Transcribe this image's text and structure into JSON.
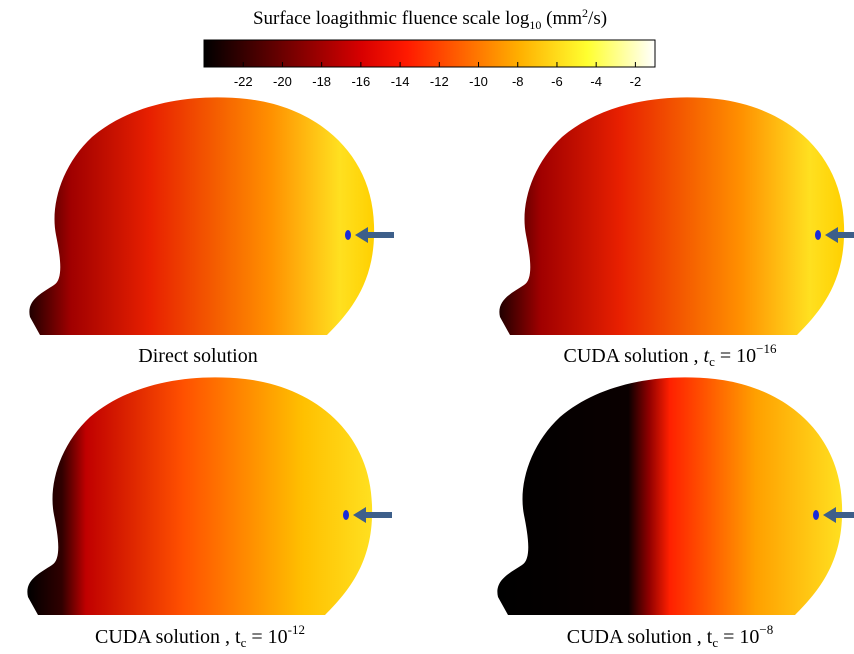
{
  "title": {
    "text": "Surface loagithmic fluence scale",
    "log": "log",
    "base": "10",
    "unit_open": "(mm",
    "unit_power": "2",
    "unit_close": "/s)"
  },
  "colorbar": {
    "lim": [
      -24,
      -1
    ],
    "ticks": [
      -22,
      -20,
      -18,
      -16,
      -14,
      -12,
      -10,
      -8,
      -6,
      -4,
      -2
    ]
  },
  "panels": [
    {
      "caption": {
        "text": "Direct solution"
      }
    },
    {
      "caption": {
        "text": "CUDA solution , ",
        "symbol": "t",
        "subscript": "c",
        "equals": " = 10",
        "exponent": "−16"
      }
    },
    {
      "caption": {
        "text": "CUDA solution , ",
        "symbol": "t",
        "subscript": "c",
        "equals": " = 10",
        "exponent": "-12"
      }
    },
    {
      "caption": {
        "text": "CUDA solution , ",
        "symbol": "t",
        "subscript": "c",
        "equals": " = 10",
        "exponent": "−8"
      }
    }
  ]
}
